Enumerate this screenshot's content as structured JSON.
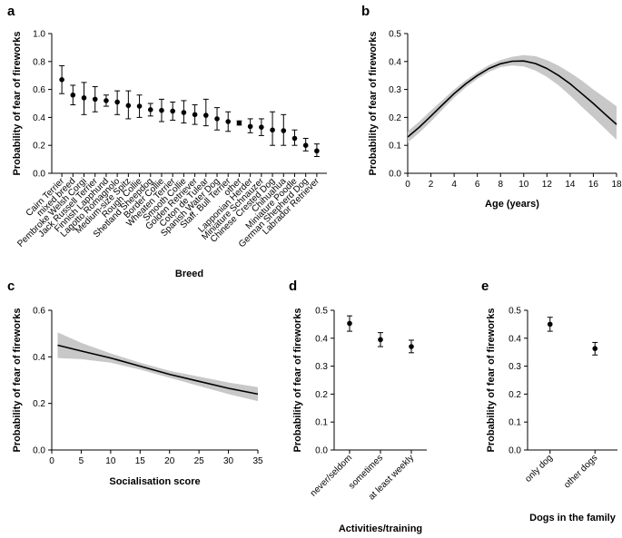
{
  "chart_data": [
    {
      "panel": "a",
      "type": "scatter",
      "xlabel": "Breed",
      "ylabel": "Probability of fear of fireworks",
      "ylim": [
        0,
        1.0
      ],
      "yticks": [
        "0.0",
        "0.2",
        "0.4",
        "0.6",
        "0.8",
        "1.0"
      ],
      "categories": [
        "Cairn Terrier",
        "mixed breed",
        "Pembroke Welsh Corgi",
        "Jack Russell Terrier",
        "Finnish Lapphund",
        "Lagotto Romagnolo",
        "Medium-size Spitz",
        "Rough Collie",
        "Shetland Sheepdog",
        "Border Collie",
        "Wheaten Terrier",
        "Smooth Collie",
        "Golden Retriever",
        "Coton de Tulear",
        "Spanish Water Dog",
        "Staff. Bull Terrier",
        "other",
        "Lapponian Herder",
        "Miniature Schnauzer",
        "Chinese Crested Dog",
        "Chihuahua",
        "Miniature Poodle",
        "German Shepherd Dog",
        "Labrador Retriever"
      ],
      "values": [
        0.67,
        0.56,
        0.54,
        0.53,
        0.52,
        0.51,
        0.485,
        0.48,
        0.455,
        0.45,
        0.445,
        0.435,
        0.42,
        0.415,
        0.39,
        0.37,
        0.36,
        0.335,
        0.33,
        0.31,
        0.305,
        0.25,
        0.2,
        0.16
      ],
      "lower": [
        0.57,
        0.49,
        0.42,
        0.44,
        0.48,
        0.42,
        0.39,
        0.4,
        0.41,
        0.37,
        0.38,
        0.36,
        0.35,
        0.34,
        0.31,
        0.3,
        0.345,
        0.29,
        0.27,
        0.2,
        0.2,
        0.2,
        0.16,
        0.12
      ],
      "upper": [
        0.77,
        0.63,
        0.65,
        0.62,
        0.56,
        0.59,
        0.59,
        0.56,
        0.5,
        0.53,
        0.51,
        0.52,
        0.49,
        0.53,
        0.47,
        0.44,
        0.375,
        0.39,
        0.39,
        0.44,
        0.42,
        0.31,
        0.25,
        0.21
      ]
    },
    {
      "panel": "b",
      "type": "line",
      "xlabel": "Age (years)",
      "ylabel": "Probability of fear of fireworks",
      "xlim": [
        0,
        18
      ],
      "ylim": [
        0,
        0.5
      ],
      "xticks": [
        "0",
        "2",
        "4",
        "6",
        "8",
        "10",
        "12",
        "14",
        "16",
        "18"
      ],
      "yticks": [
        "0.0",
        "0.1",
        "0.2",
        "0.3",
        "0.4",
        "0.5"
      ],
      "x": [
        0,
        1,
        2,
        3,
        4,
        5,
        6,
        7,
        8,
        9,
        10,
        11,
        12,
        13,
        14,
        15,
        16,
        17,
        18
      ],
      "values": [
        0.13,
        0.165,
        0.205,
        0.245,
        0.285,
        0.32,
        0.35,
        0.375,
        0.392,
        0.401,
        0.402,
        0.393,
        0.375,
        0.35,
        0.32,
        0.285,
        0.25,
        0.212,
        0.175
      ],
      "lower": [
        0.11,
        0.145,
        0.185,
        0.228,
        0.27,
        0.307,
        0.338,
        0.363,
        0.38,
        0.386,
        0.382,
        0.368,
        0.345,
        0.315,
        0.278,
        0.238,
        0.2,
        0.16,
        0.12
      ],
      "upper": [
        0.15,
        0.185,
        0.225,
        0.262,
        0.3,
        0.333,
        0.362,
        0.387,
        0.405,
        0.417,
        0.423,
        0.419,
        0.405,
        0.385,
        0.36,
        0.332,
        0.3,
        0.27,
        0.24
      ]
    },
    {
      "panel": "c",
      "type": "line",
      "xlabel": "Socialisation score",
      "ylabel": "Probability of fear of fireworks",
      "xlim": [
        0,
        35
      ],
      "ylim": [
        0,
        0.6
      ],
      "xticks": [
        "0",
        "5",
        "10",
        "15",
        "20",
        "25",
        "30",
        "35"
      ],
      "yticks": [
        "0.0",
        "0.2",
        "0.4",
        "0.6"
      ],
      "x": [
        1,
        5,
        10,
        15,
        20,
        25,
        30,
        35
      ],
      "values": [
        0.45,
        0.425,
        0.395,
        0.36,
        0.325,
        0.295,
        0.265,
        0.24
      ],
      "lower": [
        0.395,
        0.39,
        0.375,
        0.345,
        0.31,
        0.275,
        0.24,
        0.21
      ],
      "upper": [
        0.505,
        0.46,
        0.415,
        0.375,
        0.34,
        0.315,
        0.29,
        0.27
      ]
    },
    {
      "panel": "d",
      "type": "scatter",
      "xlabel": "Activities/training",
      "ylabel": "Probability of fear of fireworks",
      "ylim": [
        0,
        0.5
      ],
      "yticks": [
        "0.0",
        "0.1",
        "0.2",
        "0.3",
        "0.4",
        "0.5"
      ],
      "categories": [
        "never/seldom",
        "sometimes",
        "at least weekly"
      ],
      "values": [
        0.453,
        0.395,
        0.37
      ],
      "lower": [
        0.425,
        0.37,
        0.348
      ],
      "upper": [
        0.48,
        0.42,
        0.393
      ]
    },
    {
      "panel": "e",
      "type": "scatter",
      "xlabel": "Dogs in the family",
      "ylabel": "Probability of fear of fireworks",
      "ylim": [
        0,
        0.5
      ],
      "yticks": [
        "0.0",
        "0.1",
        "0.2",
        "0.3",
        "0.4",
        "0.5"
      ],
      "categories": [
        "only dog",
        "other dogs"
      ],
      "values": [
        0.45,
        0.363
      ],
      "lower": [
        0.425,
        0.34
      ],
      "upper": [
        0.475,
        0.385
      ]
    }
  ]
}
